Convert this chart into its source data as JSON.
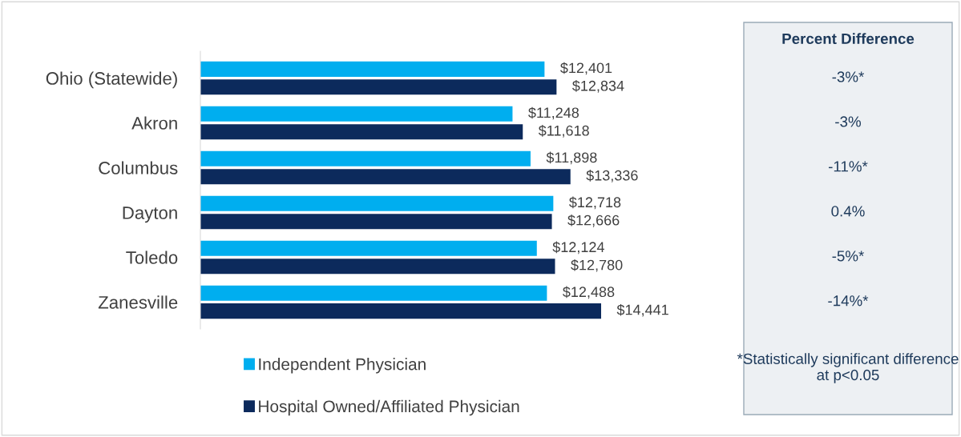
{
  "chart_data": {
    "type": "bar",
    "orientation": "horizontal",
    "categories": [
      "Ohio (Statewide)",
      "Akron",
      "Columbus",
      "Dayton",
      "Toledo",
      "Zanesville"
    ],
    "series": [
      {
        "name": "Independent Physician",
        "color": "#00aeef",
        "values": [
          12401,
          11248,
          11898,
          12718,
          12124,
          12488
        ],
        "value_labels": [
          "$12,401",
          "$11,248",
          "$11,898",
          "$12,718",
          "$12,124",
          "$12,488"
        ]
      },
      {
        "name": "Hospital Owned/Affiliated Physician",
        "color": "#0c2a5c",
        "values": [
          12834,
          11618,
          13336,
          12666,
          12780,
          14441
        ],
        "value_labels": [
          "$12,834",
          "$11,618",
          "$13,336",
          "$12,666",
          "$12,780",
          "$14,441"
        ]
      }
    ],
    "annotations": [
      "Percent Difference",
      "-3%*",
      "-3%",
      "-11%*",
      "0.4%",
      "-5%*",
      "-14%*",
      "*Statistically significant difference at p<0.05"
    ],
    "legend": "bottom left",
    "grid": false
  }
}
